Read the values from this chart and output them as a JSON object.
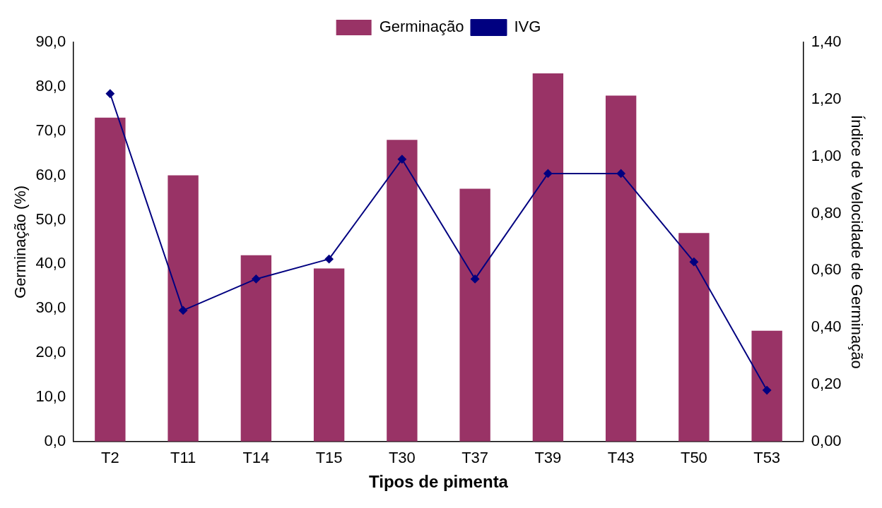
{
  "chart_data": {
    "type": "bar",
    "xlabel": "Tipos de pimenta",
    "ylabel": "Germinação (%)",
    "y2label": "Índice de Velocidade de Germinação",
    "categories": [
      "T2",
      "T11",
      "T14",
      "T15",
      "T30",
      "T37",
      "T39",
      "T43",
      "T50",
      "T53"
    ],
    "series": [
      {
        "name": "Germinação",
        "color": "#993366",
        "values": [
          73,
          60,
          42,
          39,
          68,
          57,
          83,
          78,
          47,
          25
        ]
      },
      {
        "name": "IVG",
        "type": "line",
        "axis": "y2",
        "color": "#000080",
        "marker": "diamond",
        "values": [
          1.22,
          0.46,
          0.57,
          0.64,
          0.99,
          0.57,
          0.94,
          0.94,
          0.63,
          0.18
        ]
      }
    ],
    "ylim": [
      0,
      90
    ],
    "yticks": [
      {
        "value": 0,
        "label": "0,0"
      },
      {
        "value": 10,
        "label": "10,0"
      },
      {
        "value": 20,
        "label": "20,0"
      },
      {
        "value": 30,
        "label": "30,0"
      },
      {
        "value": 40,
        "label": "40,0"
      },
      {
        "value": 50,
        "label": "50,0"
      },
      {
        "value": 60,
        "label": "60,0"
      },
      {
        "value": 70,
        "label": "70,0"
      },
      {
        "value": 80,
        "label": "80,0"
      },
      {
        "value": 90,
        "label": "90,0"
      }
    ],
    "y2lim": [
      0,
      1.4
    ],
    "y2ticks": [
      {
        "value": 0,
        "label": "0,00"
      },
      {
        "value": 0.2,
        "label": "0,20"
      },
      {
        "value": 0.4,
        "label": "0,40"
      },
      {
        "value": 0.6,
        "label": "0,60"
      },
      {
        "value": 0.8,
        "label": "0,80"
      },
      {
        "value": 1,
        "label": "1,00"
      },
      {
        "value": 1.2,
        "label": "1,20"
      },
      {
        "value": 1.4,
        "label": "1,40"
      }
    ],
    "grid": false,
    "legend": "top"
  }
}
